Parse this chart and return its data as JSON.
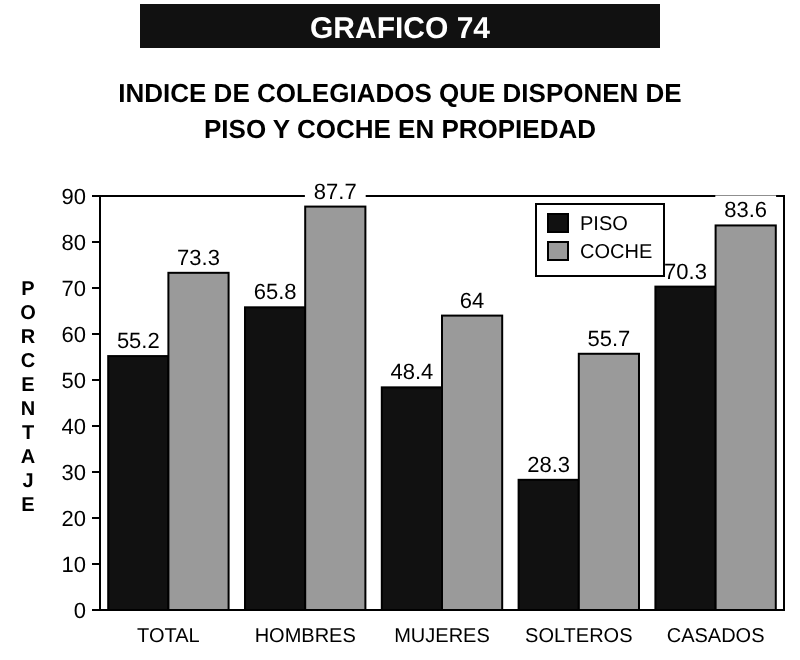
{
  "chart_data": {
    "type": "bar",
    "title": "GRAFICO 74",
    "subtitle": "INDICE DE COLEGIADOS QUE DISPONEN DE PISO Y COCHE EN PROPIEDAD",
    "ylabel": "PORCENTAJE",
    "categories": [
      "TOTAL",
      "HOMBRES",
      "MUJERES",
      "SOLTEROS",
      "CASADOS"
    ],
    "series": [
      {
        "name": "PISO",
        "color": "#111111",
        "values": [
          55.2,
          65.8,
          48.4,
          28.3,
          70.3
        ]
      },
      {
        "name": "COCHE",
        "color": "#9a9a9a",
        "values": [
          73.3,
          87.7,
          64,
          55.7,
          83.6
        ]
      }
    ],
    "ylim": [
      0,
      90
    ],
    "yticks": [
      0,
      10,
      20,
      30,
      40,
      50,
      60,
      70,
      80,
      90
    ],
    "data_labels": true,
    "legend": "top right",
    "grid": false
  }
}
